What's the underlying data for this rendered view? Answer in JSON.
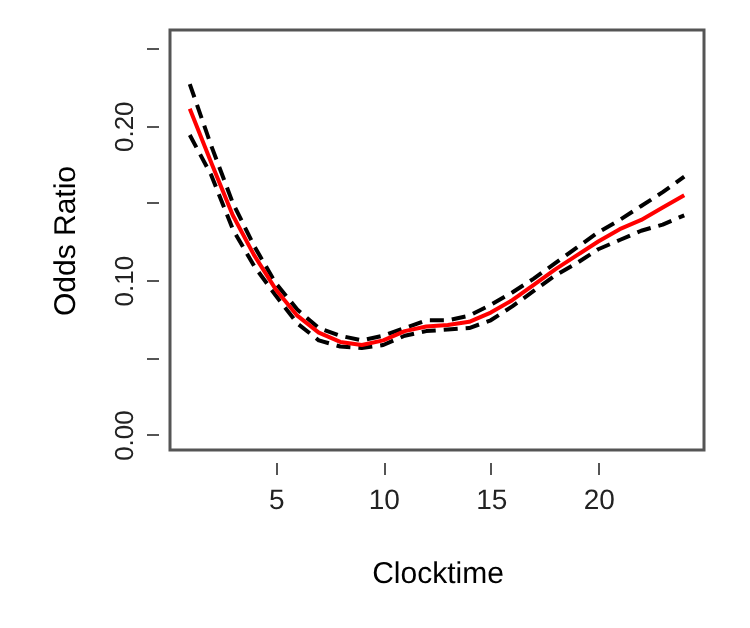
{
  "chart_data": {
    "type": "line",
    "xlabel": "Clocktime",
    "ylabel": "Odds Ratio",
    "x": [
      1,
      2,
      3,
      4,
      5,
      6,
      7,
      8,
      9,
      10,
      11,
      12,
      13,
      14,
      15,
      16,
      17,
      18,
      19,
      20,
      21,
      22,
      23,
      24
    ],
    "xlim": [
      0.08,
      24.92
    ],
    "xticks": [
      5,
      10,
      15,
      20
    ],
    "ylim": [
      -0.01,
      0.262
    ],
    "yticks": [
      {
        "value": 0,
        "label": "0.00"
      },
      {
        "value": 0.05,
        "label": null
      },
      {
        "value": 0.1,
        "label": "0.10"
      },
      {
        "value": 0.15,
        "label": null
      },
      {
        "value": 0.2,
        "label": "0.20"
      },
      {
        "value": 0.25,
        "label": null
      }
    ],
    "grid": false,
    "series": [
      {
        "color": "#000000",
        "line_style": "dashed",
        "values": [
          0.194,
          0.168,
          0.133,
          0.109,
          0.09,
          0.072,
          0.061,
          0.057,
          0.056,
          0.058,
          0.064,
          0.067,
          0.068,
          0.069,
          0.074,
          0.083,
          0.093,
          0.103,
          0.111,
          0.12,
          0.126,
          0.132,
          0.136,
          0.142
        ]
      },
      {
        "color": "#000000",
        "line_style": "dashed",
        "values": [
          0.227,
          0.187,
          0.15,
          0.122,
          0.098,
          0.081,
          0.069,
          0.064,
          0.061,
          0.064,
          0.069,
          0.074,
          0.074,
          0.077,
          0.084,
          0.092,
          0.101,
          0.111,
          0.121,
          0.131,
          0.139,
          0.148,
          0.157,
          0.167
        ]
      },
      {
        "color": "#ff0000",
        "line_style": "solid",
        "values": [
          0.211,
          0.176,
          0.142,
          0.116,
          0.094,
          0.077,
          0.066,
          0.06,
          0.058,
          0.061,
          0.067,
          0.07,
          0.071,
          0.073,
          0.079,
          0.087,
          0.097,
          0.107,
          0.116,
          0.125,
          0.133,
          0.139,
          0.147,
          0.155
        ]
      }
    ]
  }
}
